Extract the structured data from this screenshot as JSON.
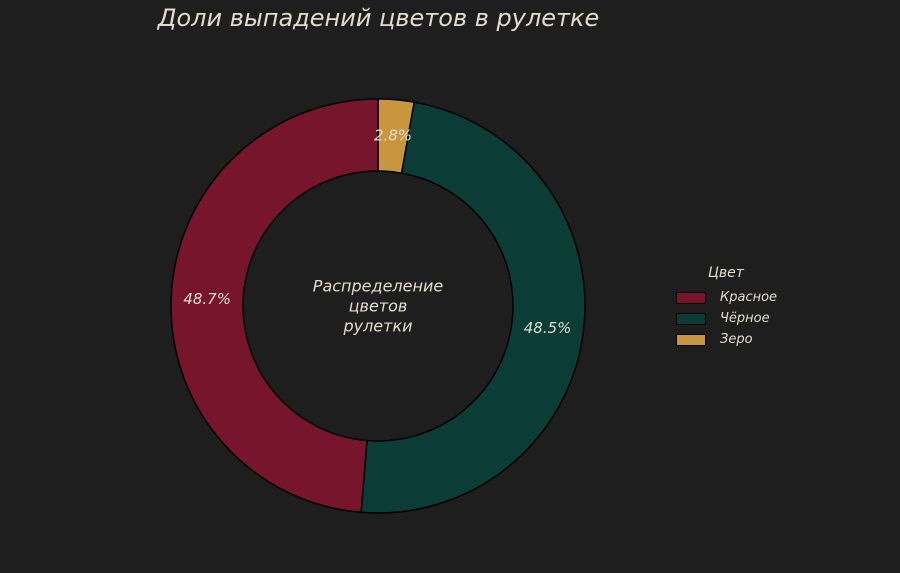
{
  "chart_data": {
    "type": "pie",
    "title": "Доли выпадений цветов в рулетке",
    "center_label": [
      "Распределение",
      "цветов",
      "рулетки"
    ],
    "legend_title": "Цвет",
    "legend_position": "right",
    "categories": [
      "Зеро",
      "Чёрное",
      "Красное"
    ],
    "values": [
      2.8,
      48.5,
      48.7
    ],
    "labels": [
      "2.8%",
      "48.5%",
      "48.7%"
    ],
    "colors": [
      "#c8963e",
      "#0b3d36",
      "#76152b"
    ],
    "legend_order": [
      "Красное",
      "Чёрное",
      "Зеро"
    ]
  }
}
